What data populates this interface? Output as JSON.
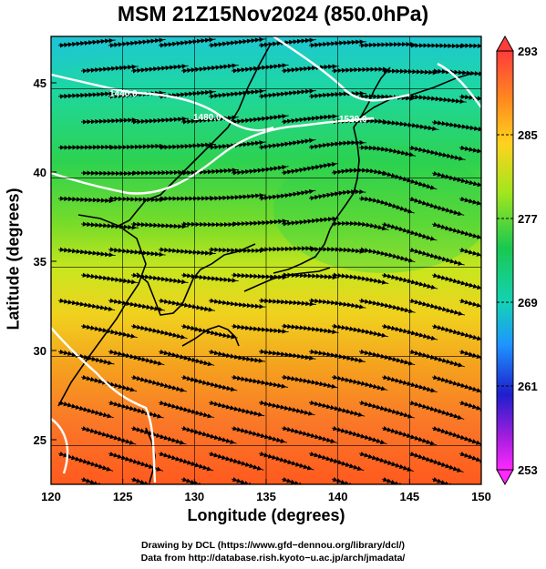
{
  "title": "MSM 21Z15Nov2024 (850.0hPa)",
  "chart_data": {
    "type": "heatmap",
    "title": "MSM 21Z15Nov2024 (850.0hPa)",
    "xlabel": "Longitude (degrees)",
    "ylabel": "Latitude  (degrees)",
    "xlim": [
      120,
      150
    ],
    "ylim": [
      22.5,
      47.6
    ],
    "x_ticks": [
      120,
      125,
      130,
      135,
      140,
      145,
      150
    ],
    "y_ticks": [
      25,
      30,
      35,
      40,
      45
    ],
    "grid": true,
    "colorbar": {
      "ticks": [
        293,
        285,
        277,
        269,
        261,
        253
      ],
      "range": [
        253,
        293
      ],
      "colors": [
        "#ff3c3c",
        "#ff8c1e",
        "#ffd21e",
        "#a0e61e",
        "#19c850",
        "#14d2b4",
        "#1e96ff",
        "#1e1ecd",
        "#a01edc",
        "#ff28ff"
      ]
    },
    "contour_labels": [
      "1440.0",
      "1480.0",
      "1520.0"
    ],
    "overlay": "streamlines"
  },
  "credits": {
    "line1": "Drawing by DCL (https://www.gfd−dennou.org/library/dcl/)",
    "line2": "Data from http://database.rish.kyoto−u.ac.jp/arch/jmadata/"
  }
}
